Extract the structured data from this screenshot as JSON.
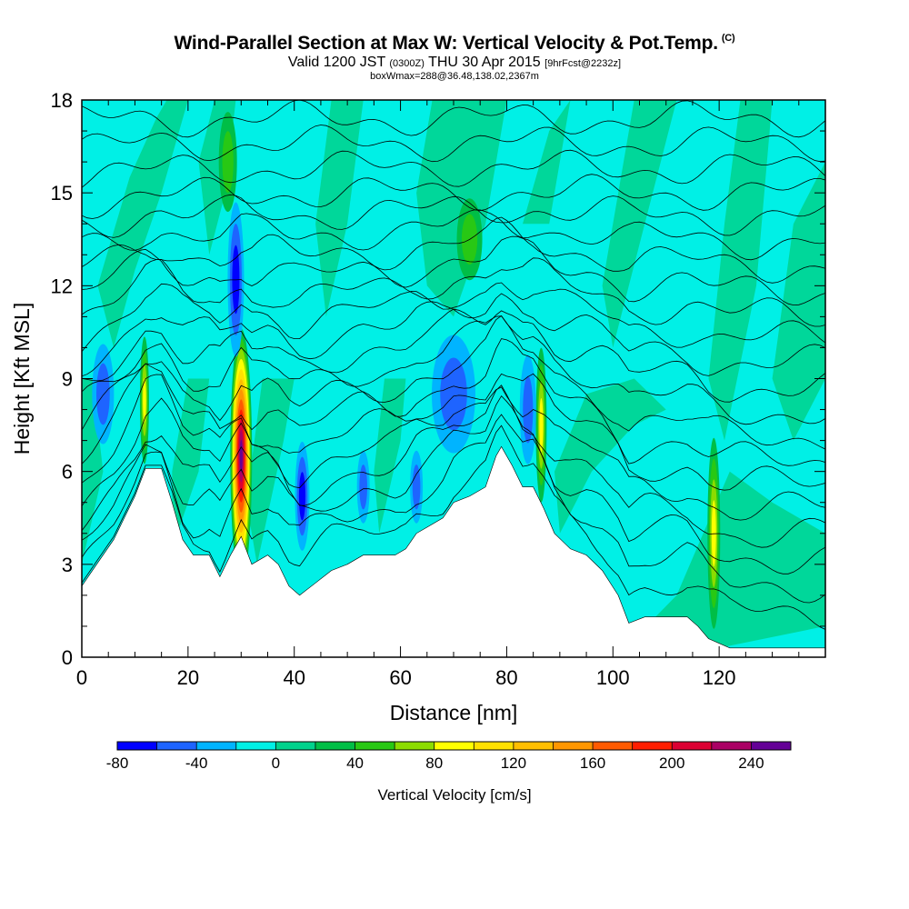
{
  "title": {
    "main": "Wind-Parallel Section at Max W: Vertical Velocity & Pot.Temp.",
    "copyright": "(C)",
    "valid_prefix": "Valid 1200 JST",
    "valid_utc": "(0300Z)",
    "valid_date": "THU 30 Apr 2015",
    "forecast": "[9hrFcst@2232z]",
    "box_info": "boxWmax=288@36.48,138.02,2367m"
  },
  "chart_data": {
    "type": "heatmap",
    "xlabel": "Distance [nm]",
    "ylabel": "Height [Kft MSL]",
    "xlim": [
      0,
      140
    ],
    "ylim": [
      0,
      18
    ],
    "x_ticks": [
      0,
      20,
      40,
      60,
      80,
      100,
      120
    ],
    "y_ticks": [
      0,
      3,
      6,
      9,
      12,
      15,
      18
    ],
    "colorbar": {
      "label": "Vertical Velocity [cm/s]",
      "tick_labels": [
        "-80",
        "-40",
        "0",
        "40",
        "80",
        "120",
        "160",
        "200",
        "240"
      ],
      "tick_values": [
        -80,
        -40,
        0,
        40,
        80,
        120,
        160,
        200,
        240
      ],
      "bins": [
        -80,
        -60,
        -40,
        -20,
        0,
        20,
        40,
        60,
        80,
        100,
        120,
        140,
        160,
        180,
        200,
        220,
        240,
        260
      ],
      "colors": [
        "#0000ff",
        "#1e64ff",
        "#00b4ff",
        "#00f0e6",
        "#00d28c",
        "#00be46",
        "#28c814",
        "#8cdc00",
        "#ffff00",
        "#ffe100",
        "#ffbe00",
        "#ff9600",
        "#ff5a00",
        "#ff1e00",
        "#dc0032",
        "#aa0064",
        "#640096"
      ]
    },
    "background_color": "#00f0e6",
    "terrain": [
      [
        0,
        2.3
      ],
      [
        2,
        2.8
      ],
      [
        4,
        3.3
      ],
      [
        6,
        3.8
      ],
      [
        8,
        4.5
      ],
      [
        10,
        5.2
      ],
      [
        12,
        6.1
      ],
      [
        15,
        6.1
      ],
      [
        17,
        5.0
      ],
      [
        19,
        3.8
      ],
      [
        21,
        3.3
      ],
      [
        24,
        3.3
      ],
      [
        26,
        2.6
      ],
      [
        28,
        3.3
      ],
      [
        30,
        3.9
      ],
      [
        32,
        3.0
      ],
      [
        35,
        3.3
      ],
      [
        37,
        3.0
      ],
      [
        39,
        2.3
      ],
      [
        41,
        2.0
      ],
      [
        44,
        2.4
      ],
      [
        47,
        2.8
      ],
      [
        50,
        3.0
      ],
      [
        53,
        3.3
      ],
      [
        56,
        3.3
      ],
      [
        59,
        3.3
      ],
      [
        61,
        3.5
      ],
      [
        63,
        4.0
      ],
      [
        65,
        4.2
      ],
      [
        68,
        4.5
      ],
      [
        70,
        5.0
      ],
      [
        73,
        5.2
      ],
      [
        76,
        5.5
      ],
      [
        78,
        6.5
      ],
      [
        79,
        6.8
      ],
      [
        81,
        6.2
      ],
      [
        83,
        5.5
      ],
      [
        85,
        5.5
      ],
      [
        87,
        4.8
      ],
      [
        89,
        4.0
      ],
      [
        92,
        3.5
      ],
      [
        95,
        3.3
      ],
      [
        98,
        2.8
      ],
      [
        101,
        2.0
      ],
      [
        103,
        1.1
      ],
      [
        106,
        1.3
      ],
      [
        110,
        1.3
      ],
      [
        114,
        1.3
      ],
      [
        116,
        1.0
      ],
      [
        118,
        0.6
      ],
      [
        122,
        0.3
      ],
      [
        130,
        0.3
      ],
      [
        140,
        0.3
      ]
    ],
    "updraft_cores": [
      {
        "x": 30,
        "y": 6.5,
        "peak": 240
      },
      {
        "x": 11.8,
        "y": 8.3,
        "peak": 80
      },
      {
        "x": 86.5,
        "y": 7.5,
        "peak": 90
      },
      {
        "x": 119,
        "y": 4.0,
        "peak": 80
      },
      {
        "x": 27.5,
        "y": 16.0,
        "peak": 40
      },
      {
        "x": 73,
        "y": 13.5,
        "peak": 45
      }
    ],
    "downdraft_cores": [
      {
        "x": 29,
        "y": 12.2,
        "peak": -75
      },
      {
        "x": 41.5,
        "y": 5.2,
        "peak": -65
      },
      {
        "x": 70,
        "y": 8.5,
        "peak": -45
      },
      {
        "x": 84,
        "y": 8.0,
        "peak": -55
      },
      {
        "x": 4,
        "y": 8.5,
        "peak": -45
      },
      {
        "x": 53,
        "y": 5.5,
        "peak": -40
      },
      {
        "x": 63,
        "y": 5.5,
        "peak": -40
      }
    ],
    "theta_contour_heights": [
      1.2,
      2.1,
      3.0,
      3.8,
      4.6,
      5.4,
      6.2,
      7.0,
      7.8,
      8.6,
      9.4,
      10.2,
      11.0,
      11.8,
      12.6,
      13.4,
      14.2,
      15.0,
      15.8,
      16.6,
      17.4
    ]
  }
}
